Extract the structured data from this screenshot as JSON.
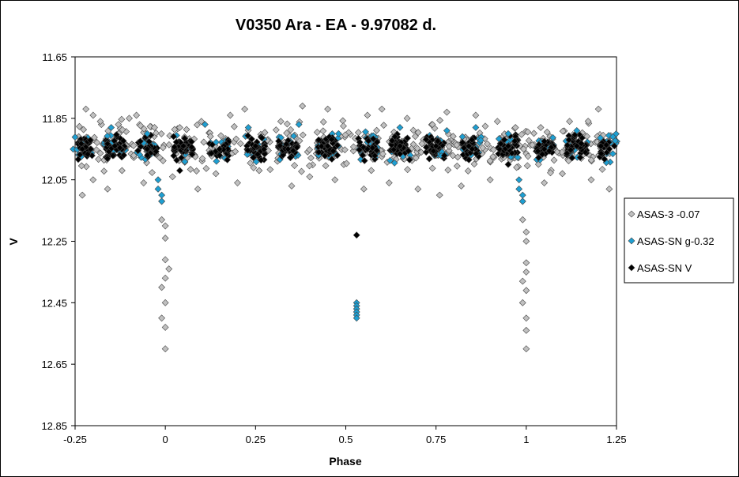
{
  "chart_data": {
    "type": "scatter",
    "title": "V0350 Ara - EA - 9.97082 d.",
    "xlabel": "Phase",
    "ylabel": "V",
    "xlim": [
      -0.25,
      1.25
    ],
    "ylim": [
      11.65,
      12.85
    ],
    "y_inverted": true,
    "grid": false,
    "legend_position": "right",
    "x_ticks": [
      "-0.25",
      "0",
      "0.25",
      "0.5",
      "0.75",
      "1",
      "1.25"
    ],
    "y_ticks": [
      "11.65",
      "11.85",
      "12.05",
      "12.25",
      "12.45",
      "12.65",
      "12.85"
    ],
    "series": [
      {
        "name": "ASAS-3 -0.07",
        "color": "#c0c0c0",
        "marker": "diamond",
        "points": [
          [
            -0.22,
            11.82
          ],
          [
            -0.2,
            11.84
          ],
          [
            -0.18,
            11.86
          ],
          [
            -0.13,
            11.87
          ],
          [
            -0.1,
            11.85
          ],
          [
            -0.08,
            11.84
          ],
          [
            -0.03,
            11.88
          ],
          [
            0.04,
            11.88
          ],
          [
            0.1,
            11.86
          ],
          [
            0.18,
            11.84
          ],
          [
            0.22,
            11.82
          ],
          [
            0.32,
            11.86
          ],
          [
            0.38,
            11.81
          ],
          [
            0.45,
            11.82
          ],
          [
            0.56,
            11.84
          ],
          [
            0.6,
            11.82
          ],
          [
            0.67,
            11.85
          ],
          [
            0.74,
            11.87
          ],
          [
            0.78,
            11.83
          ],
          [
            0.86,
            11.84
          ],
          [
            0.92,
            11.86
          ],
          [
            0.97,
            11.88
          ],
          [
            1.04,
            11.88
          ],
          [
            1.12,
            11.86
          ],
          [
            1.2,
            11.82
          ],
          [
            -0.23,
            12.1
          ],
          [
            -0.2,
            12.05
          ],
          [
            -0.16,
            12.08
          ],
          [
            -0.12,
            12.02
          ],
          [
            -0.06,
            12.06
          ],
          [
            0.02,
            12.04
          ],
          [
            0.09,
            12.08
          ],
          [
            0.14,
            12.03
          ],
          [
            0.2,
            12.06
          ],
          [
            0.26,
            12.02
          ],
          [
            0.35,
            12.07
          ],
          [
            0.4,
            12.04
          ],
          [
            0.47,
            12.05
          ],
          [
            0.55,
            12.08
          ],
          [
            0.62,
            12.06
          ],
          [
            0.7,
            12.08
          ],
          [
            0.76,
            12.1
          ],
          [
            0.82,
            12.07
          ],
          [
            0.9,
            12.05
          ],
          [
            1.05,
            12.06
          ],
          [
            1.1,
            12.03
          ],
          [
            1.18,
            12.05
          ],
          [
            1.23,
            12.08
          ],
          [
            -0.01,
            12.12
          ],
          [
            -0.01,
            12.18
          ],
          [
            0.0,
            12.2
          ],
          [
            0.0,
            12.24
          ],
          [
            0.0,
            12.31
          ],
          [
            0.01,
            12.34
          ],
          [
            0.0,
            12.37
          ],
          [
            -0.01,
            12.4
          ],
          [
            0.0,
            12.45
          ],
          [
            -0.01,
            12.5
          ],
          [
            0.0,
            12.53
          ],
          [
            0.0,
            12.6
          ],
          [
            0.99,
            12.12
          ],
          [
            0.99,
            12.18
          ],
          [
            1.0,
            12.22
          ],
          [
            1.0,
            12.25
          ],
          [
            1.0,
            12.32
          ],
          [
            1.0,
            12.35
          ],
          [
            0.99,
            12.38
          ],
          [
            1.0,
            12.41
          ],
          [
            0.99,
            12.45
          ],
          [
            1.0,
            12.5
          ],
          [
            1.0,
            12.54
          ],
          [
            1.0,
            12.6
          ]
        ]
      },
      {
        "name": "ASAS-SN g-0.32",
        "color": "#1e9fd2",
        "marker": "diamond",
        "points": [
          [
            -0.15,
            11.88
          ],
          [
            -0.05,
            11.9
          ],
          [
            0.11,
            11.87
          ],
          [
            0.23,
            11.88
          ],
          [
            0.37,
            11.87
          ],
          [
            0.48,
            11.9
          ],
          [
            0.65,
            11.88
          ],
          [
            0.78,
            11.89
          ],
          [
            0.86,
            11.88
          ],
          [
            0.95,
            11.9
          ],
          [
            1.14,
            11.89
          ],
          [
            1.24,
            11.91
          ],
          [
            -0.02,
            12.05
          ],
          [
            -0.02,
            12.08
          ],
          [
            -0.01,
            12.1
          ],
          [
            -0.01,
            12.12
          ],
          [
            0.98,
            12.05
          ],
          [
            0.98,
            12.08
          ],
          [
            0.99,
            12.1
          ],
          [
            0.99,
            12.12
          ],
          [
            0.53,
            12.45
          ],
          [
            0.53,
            12.46
          ],
          [
            0.53,
            12.47
          ],
          [
            0.53,
            12.48
          ],
          [
            0.53,
            12.49
          ],
          [
            0.53,
            12.5
          ]
        ]
      },
      {
        "name": "ASAS-SN V",
        "color": "#000000",
        "marker": "diamond",
        "points": [
          [
            -0.23,
            11.95
          ],
          [
            -0.14,
            11.94
          ],
          [
            -0.05,
            11.95
          ],
          [
            0.05,
            11.94
          ],
          [
            0.15,
            11.95
          ],
          [
            0.25,
            11.94
          ],
          [
            0.34,
            11.95
          ],
          [
            0.45,
            11.94
          ],
          [
            0.56,
            11.95
          ],
          [
            0.65,
            11.94
          ],
          [
            0.75,
            11.94
          ],
          [
            0.85,
            11.95
          ],
          [
            0.95,
            11.94
          ],
          [
            1.05,
            11.95
          ],
          [
            1.14,
            11.94
          ],
          [
            1.23,
            11.95
          ],
          [
            0.53,
            12.23
          ],
          [
            0.04,
            12.02
          ],
          [
            0.95,
            12.0
          ]
        ]
      }
    ]
  }
}
